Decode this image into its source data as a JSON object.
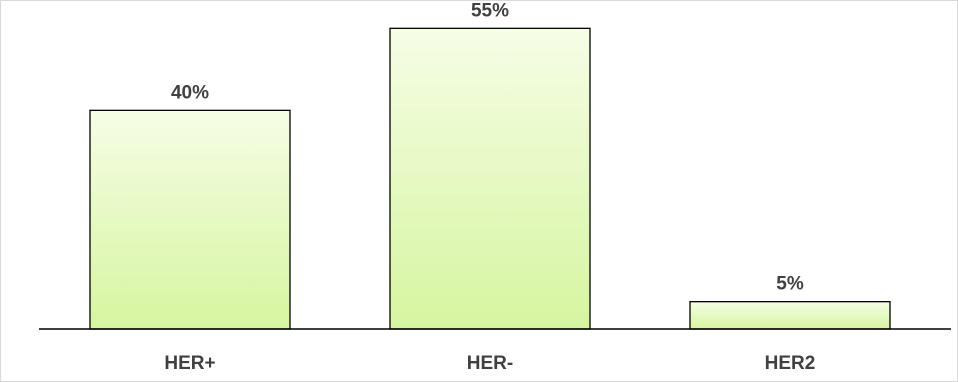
{
  "chart_data": {
    "type": "bar",
    "categories": [
      "HER+",
      "HER-",
      "HER2"
    ],
    "values": [
      40,
      55,
      5
    ],
    "value_labels": [
      "40%",
      "55%",
      "5%"
    ],
    "unit": "%",
    "title": "",
    "xlabel": "",
    "ylabel": "",
    "ylim": [
      0,
      60
    ],
    "grid": false,
    "legend": "none",
    "colors": {
      "bar_top": "#f6fde6",
      "bar_bottom": "#d6f5a0",
      "bar_stroke": "#000000",
      "axis": "#000000",
      "text": "#404040",
      "frame": "#d9d9d9"
    }
  }
}
